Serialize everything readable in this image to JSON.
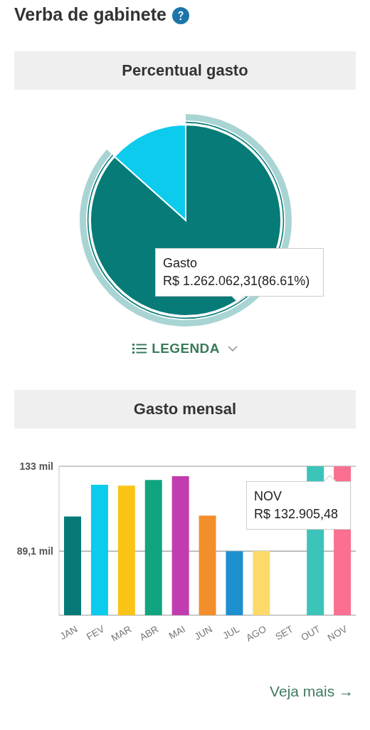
{
  "chart_data": [
    {
      "type": "pie",
      "title": "Verba de gabinete",
      "subtitle": "Percentual gasto",
      "categories": [
        "Gasto",
        null
      ],
      "values": [
        86.61,
        13.39
      ],
      "colors": [
        "#077b78",
        "#0ccbec"
      ],
      "value_labels": [
        "R$ 1.262.062,31(86.61%)",
        null
      ],
      "legend_title": "LEGENDA"
    },
    {
      "type": "bar",
      "title": "Gasto mensal",
      "categories": [
        "JAN",
        "FEV",
        "MAR",
        "ABR",
        "MAI",
        "JUN",
        "JUL",
        "AGO",
        "SET",
        "OUT",
        "NOV"
      ],
      "values": [
        107.0,
        123.4,
        123.0,
        125.9,
        127.8,
        107.5,
        89.1,
        89.2,
        null,
        133,
        132.90548
      ],
      "colors": [
        "#077a77",
        "#0ccbec",
        "#f9c416",
        "#10a57f",
        "#c13cae",
        "#f28f2a",
        "#1e8fcf",
        "#fcd96a",
        "#bb0f42",
        "#3cc4ba",
        "#fb6f91"
      ],
      "ylim": [
        56,
        133
      ],
      "yticks": [
        {
          "value": 133,
          "label": "133 mil"
        },
        {
          "value": 89.1,
          "label": "89,1 mil"
        }
      ],
      "grid": "y",
      "annotations": [
        {
          "text": "NOV\nR$ 132.905,48",
          "x": "NOV",
          "y": 132.90548
        },
        "Veja mais →"
      ]
    }
  ]
}
